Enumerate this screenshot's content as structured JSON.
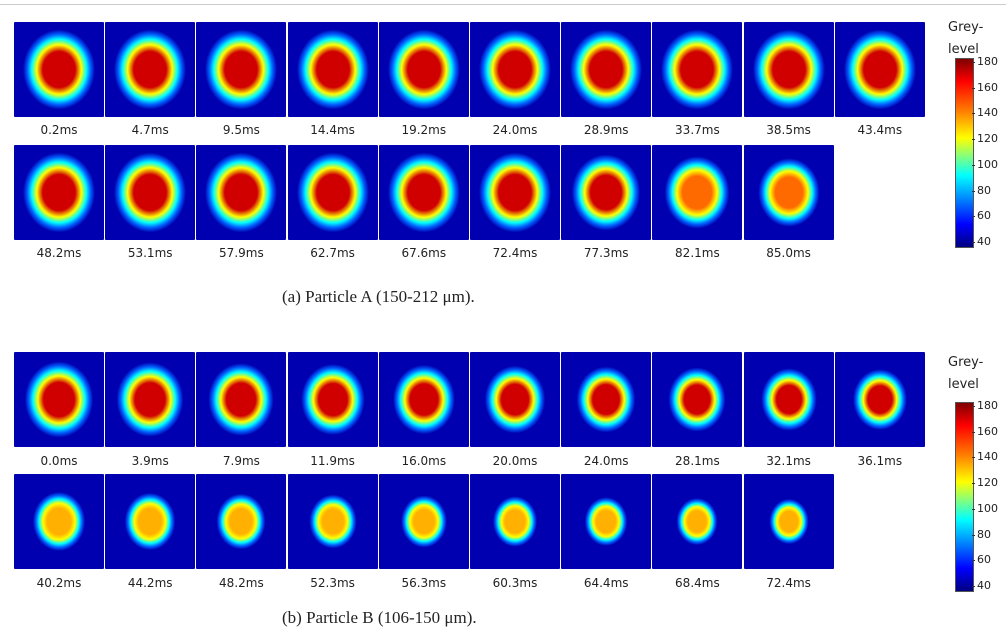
{
  "panels": [
    {
      "frames": [
        "0.2ms",
        "4.7ms",
        "9.5ms",
        "14.4ms",
        "19.2ms",
        "24.0ms",
        "28.9ms",
        "33.7ms",
        "38.5ms",
        "43.4ms",
        "48.2ms",
        "53.1ms",
        "57.9ms",
        "62.7ms",
        "67.6ms",
        "72.4ms",
        "77.3ms",
        "82.1ms",
        "85.0ms"
      ],
      "colorbar": {
        "title_lines": [
          "Grey-",
          "level"
        ],
        "ticks": [
          40,
          60,
          80,
          100,
          120,
          140,
          160,
          180
        ]
      },
      "caption": "(a) Particle A (150-212 μm)."
    },
    {
      "frames": [
        "0.0ms",
        "3.9ms",
        "7.9ms",
        "11.9ms",
        "16.0ms",
        "20.0ms",
        "24.0ms",
        "28.1ms",
        "32.1ms",
        "36.1ms",
        "40.2ms",
        "44.2ms",
        "48.2ms",
        "52.3ms",
        "56.3ms",
        "60.3ms",
        "64.4ms",
        "68.4ms",
        "72.4ms"
      ],
      "colorbar": {
        "title_lines": [
          "Grey-",
          "level"
        ],
        "ticks": [
          40,
          60,
          80,
          100,
          120,
          140,
          160,
          180
        ]
      },
      "caption": "(b) Particle B (106-150 μm)."
    }
  ]
}
